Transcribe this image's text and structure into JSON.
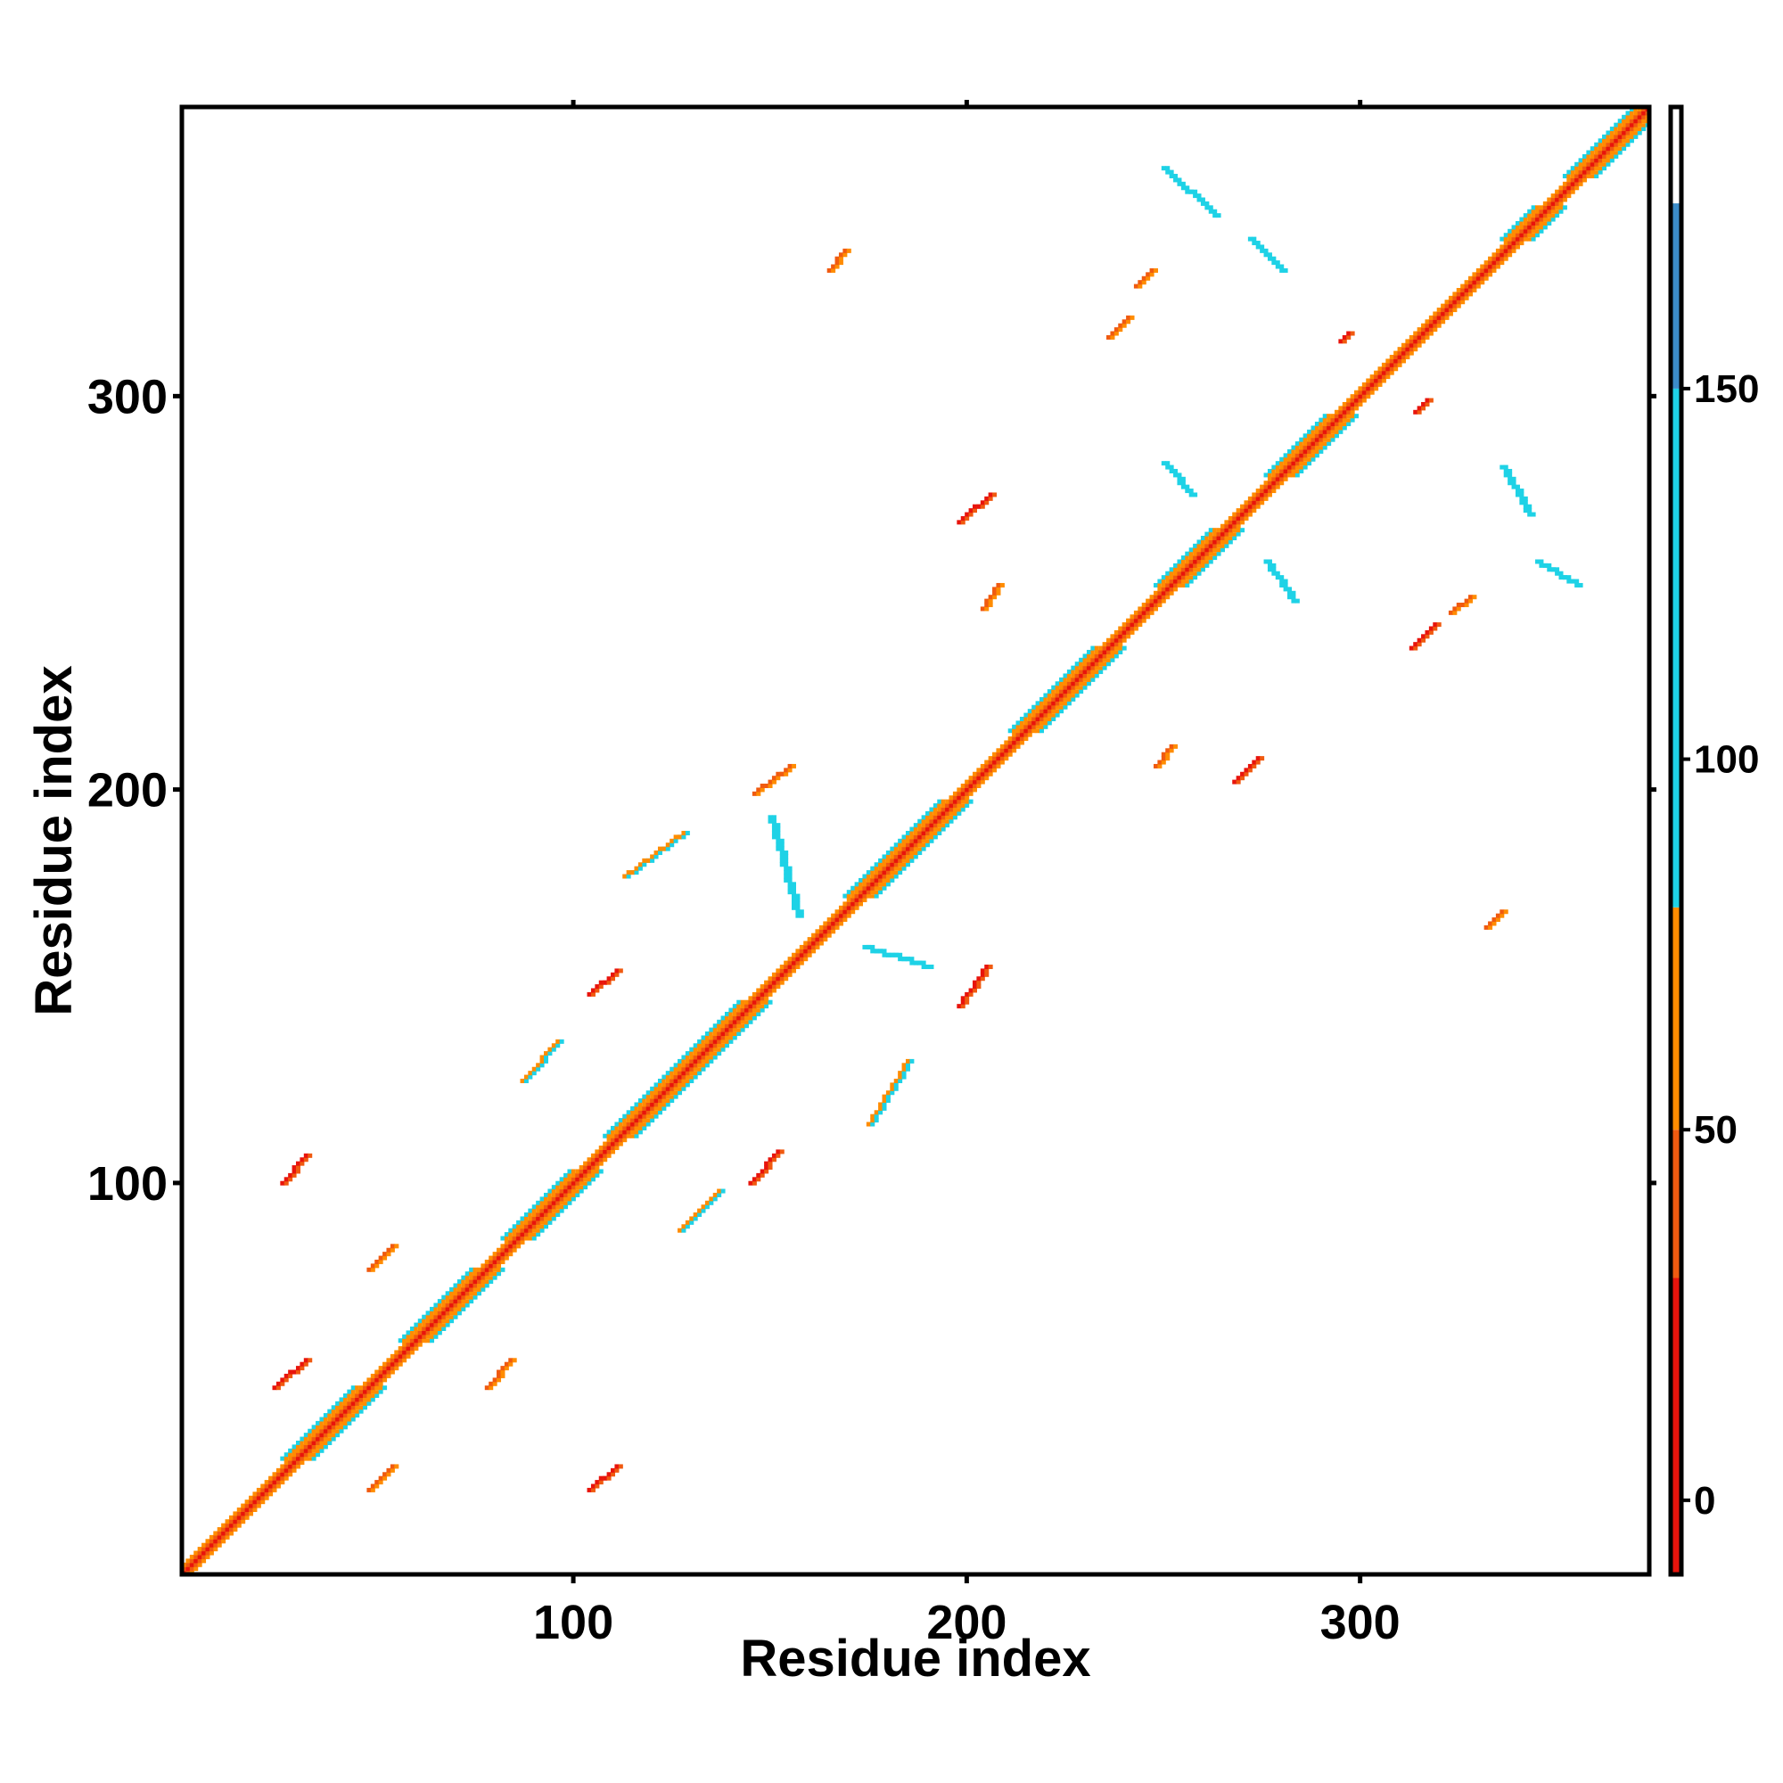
{
  "chart_data": {
    "type": "heatmap",
    "title": "",
    "xlabel": "Residue index",
    "ylabel": "Residue index",
    "xlim": [
      1,
      373
    ],
    "ylim": [
      1,
      373
    ],
    "x_ticks": [
      "100",
      "200",
      "300"
    ],
    "y_ticks": [
      "100",
      "200",
      "300"
    ],
    "x_tick_values": [
      100,
      200,
      300
    ],
    "y_tick_values": [
      100,
      200,
      300
    ],
    "grid": false,
    "legend": "colorbar-right",
    "colorbar": {
      "range": [
        -10,
        188
      ],
      "ticks": [
        "0",
        "50",
        "100",
        "150"
      ],
      "tick_values": [
        0,
        50,
        100,
        150
      ],
      "bands": [
        {
          "from": -10,
          "to": 30,
          "color": "#e8140c"
        },
        {
          "from": 30,
          "to": 50,
          "color": "#f05a10"
        },
        {
          "from": 50,
          "to": 80,
          "color": "#ff8c00"
        },
        {
          "from": 80,
          "to": 150,
          "color": "#1ed2e6"
        },
        {
          "from": 150,
          "to": 175,
          "color": "#3c8cc8"
        },
        {
          "from": 175,
          "to": 188,
          "color": "#ffffff"
        }
      ]
    },
    "diagonal": {
      "from": 1,
      "to": 373,
      "color": "#e8140c"
    },
    "helix_blocks": [
      {
        "from": 30,
        "to": 48
      },
      {
        "from": 60,
        "to": 78
      },
      {
        "from": 86,
        "to": 103
      },
      {
        "from": 112,
        "to": 146
      },
      {
        "from": 173,
        "to": 197
      },
      {
        "from": 215,
        "to": 236
      },
      {
        "from": 252,
        "to": 266
      },
      {
        "from": 280,
        "to": 295
      },
      {
        "from": 340,
        "to": 348
      },
      {
        "from": 356,
        "to": 373
      }
    ],
    "contact_segments": [
      {
        "x1": 24,
        "y1": 48,
        "x2": 32,
        "y2": 55,
        "value": 20
      },
      {
        "x1": 26,
        "y1": 100,
        "x2": 32,
        "y2": 107,
        "value": 20
      },
      {
        "x1": 48,
        "y1": 22,
        "x2": 54,
        "y2": 28,
        "value": 40
      },
      {
        "x1": 48,
        "y1": 78,
        "x2": 54,
        "y2": 84,
        "value": 40
      },
      {
        "x1": 78,
        "y1": 48,
        "x2": 84,
        "y2": 55,
        "value": 40
      },
      {
        "x1": 104,
        "y1": 22,
        "x2": 111,
        "y2": 28,
        "value": 20
      },
      {
        "x1": 104,
        "y1": 148,
        "x2": 111,
        "y2": 154,
        "value": 20
      },
      {
        "x1": 145,
        "y1": 100,
        "x2": 152,
        "y2": 108,
        "value": 20
      },
      {
        "x1": 146,
        "y1": 199,
        "x2": 155,
        "y2": 206,
        "value": 40
      },
      {
        "x1": 198,
        "y1": 145,
        "x2": 205,
        "y2": 155,
        "value": 20
      },
      {
        "x1": 198,
        "y1": 268,
        "x2": 206,
        "y2": 275,
        "value": 20
      },
      {
        "x1": 204,
        "y1": 246,
        "x2": 208,
        "y2": 252,
        "value": 40
      },
      {
        "x1": 165,
        "y1": 332,
        "x2": 169,
        "y2": 337,
        "value": 40
      },
      {
        "x1": 236,
        "y1": 315,
        "x2": 241,
        "y2": 320,
        "value": 40
      },
      {
        "x1": 243,
        "y1": 328,
        "x2": 247,
        "y2": 332,
        "value": 40
      },
      {
        "x1": 248,
        "y1": 206,
        "x2": 252,
        "y2": 211,
        "value": 40
      },
      {
        "x1": 268,
        "y1": 202,
        "x2": 274,
        "y2": 208,
        "value": 20
      },
      {
        "x1": 313,
        "y1": 236,
        "x2": 319,
        "y2": 242,
        "value": 20
      },
      {
        "x1": 323,
        "y1": 245,
        "x2": 328,
        "y2": 249,
        "value": 40
      },
      {
        "x1": 332,
        "y1": 165,
        "x2": 336,
        "y2": 169,
        "value": 40
      },
      {
        "x1": 314,
        "y1": 296,
        "x2": 317,
        "y2": 299,
        "value": 20
      },
      {
        "x1": 295,
        "y1": 314,
        "x2": 297,
        "y2": 316,
        "value": 20
      },
      {
        "x1": 87,
        "y1": 126,
        "x2": 96,
        "y2": 136,
        "value": 60
      },
      {
        "x1": 127,
        "y1": 88,
        "x2": 137,
        "y2": 98,
        "value": 60
      },
      {
        "x1": 175,
        "y1": 115,
        "x2": 185,
        "y2": 131,
        "value": 60
      },
      {
        "x1": 113,
        "y1": 178,
        "x2": 128,
        "y2": 189,
        "value": 60
      },
      {
        "x1": 150,
        "y1": 193,
        "x2": 157,
        "y2": 168,
        "value": 100
      },
      {
        "x1": 174,
        "y1": 160,
        "x2": 190,
        "y2": 155,
        "value": 100
      },
      {
        "x1": 250,
        "y1": 283,
        "x2": 257,
        "y2": 275,
        "value": 100
      },
      {
        "x1": 276,
        "y1": 258,
        "x2": 283,
        "y2": 248,
        "value": 100
      },
      {
        "x1": 336,
        "y1": 282,
        "x2": 343,
        "y2": 270,
        "value": 100
      },
      {
        "x1": 345,
        "y1": 258,
        "x2": 355,
        "y2": 252,
        "value": 100
      },
      {
        "x1": 250,
        "y1": 358,
        "x2": 263,
        "y2": 346,
        "value": 100
      },
      {
        "x1": 272,
        "y1": 340,
        "x2": 280,
        "y2": 332,
        "value": 100
      }
    ]
  }
}
